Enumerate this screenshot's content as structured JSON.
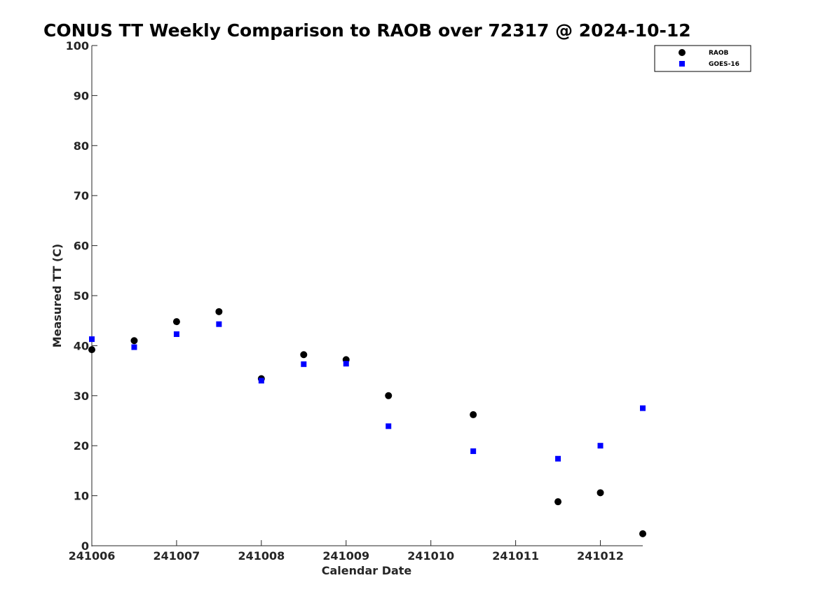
{
  "chart_data": {
    "type": "scatter",
    "title": "CONUS TT Weekly Comparison to RAOB over 72317 @ 2024-10-12",
    "xlabel": "Calendar Date",
    "ylabel": "Measured TT (C)",
    "xlim": [
      241006,
      241012.5
    ],
    "ylim": [
      0,
      100
    ],
    "x_ticks": [
      "241006",
      "241007",
      "241008",
      "241009",
      "241010",
      "241011",
      "241012"
    ],
    "x_tick_values": [
      241006,
      241007,
      241008,
      241009,
      241010,
      241011,
      241012
    ],
    "y_ticks": [
      "0",
      "10",
      "20",
      "30",
      "40",
      "50",
      "60",
      "70",
      "80",
      "90",
      "100"
    ],
    "y_tick_values": [
      0,
      10,
      20,
      30,
      40,
      50,
      60,
      70,
      80,
      90,
      100
    ],
    "grid": false,
    "legend_position": "top-right",
    "series": [
      {
        "name": "RAOB",
        "marker": "circle",
        "color": "#000000",
        "x": [
          241006,
          241006.5,
          241007,
          241007.5,
          241008,
          241008.5,
          241009,
          241009.5,
          241010.5,
          241011.5,
          241012,
          241012.5
        ],
        "y": [
          39.2,
          41.0,
          44.8,
          46.8,
          33.4,
          38.2,
          37.2,
          30.0,
          26.2,
          8.8,
          10.6,
          2.4
        ]
      },
      {
        "name": "GOES-16",
        "marker": "square",
        "color": "#0000ff",
        "x": [
          241006,
          241006.5,
          241007,
          241007.5,
          241008,
          241008.5,
          241009,
          241009.5,
          241010.5,
          241011.5,
          241012,
          241012.5
        ],
        "y": [
          41.3,
          39.7,
          42.3,
          44.3,
          33.0,
          36.3,
          36.4,
          23.9,
          18.9,
          17.4,
          20.0,
          27.5
        ]
      }
    ]
  }
}
